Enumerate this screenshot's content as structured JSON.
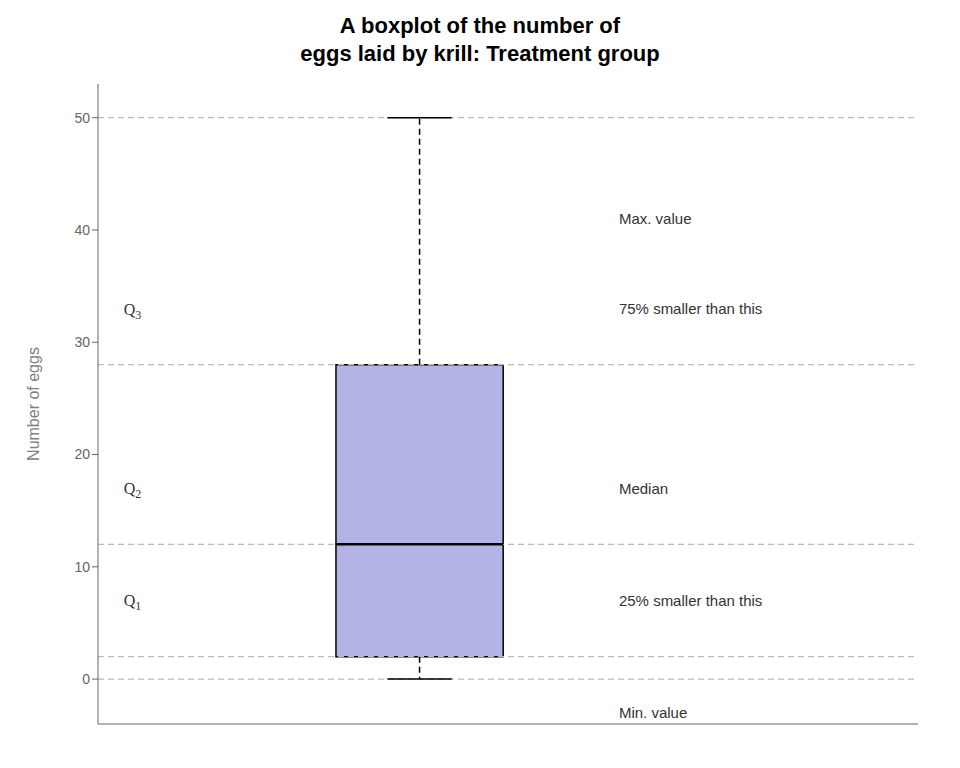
{
  "chart_data": {
    "type": "box",
    "title": "A boxplot of the number of\neggs laid by krill: Treatment group",
    "ylabel": "Number of eggs",
    "ylim": [
      -4,
      53
    ],
    "yticks": [
      0,
      10,
      20,
      30,
      40,
      50
    ],
    "q1": 2,
    "median": 12,
    "q3": 28,
    "whisker_low": 0,
    "whisker_high": 50,
    "color": "#b3b3e6",
    "reference_lines": [
      50,
      28,
      12,
      2,
      0
    ],
    "annotations": [
      {
        "y": 41,
        "text": "Max. value"
      },
      {
        "y": 33,
        "text": "75% smaller than this"
      },
      {
        "y": 17,
        "text": "Median"
      },
      {
        "y": 7,
        "text": "25% smaller than this"
      },
      {
        "y": -3,
        "text": "Min. value"
      }
    ],
    "q_annotations": [
      {
        "y": 33,
        "text": "Q",
        "sub": "3"
      },
      {
        "y": 17,
        "text": "Q",
        "sub": "2"
      },
      {
        "y": 7,
        "text": "Q",
        "sub": "1"
      }
    ],
    "grid": false,
    "tick_labels": "y"
  }
}
